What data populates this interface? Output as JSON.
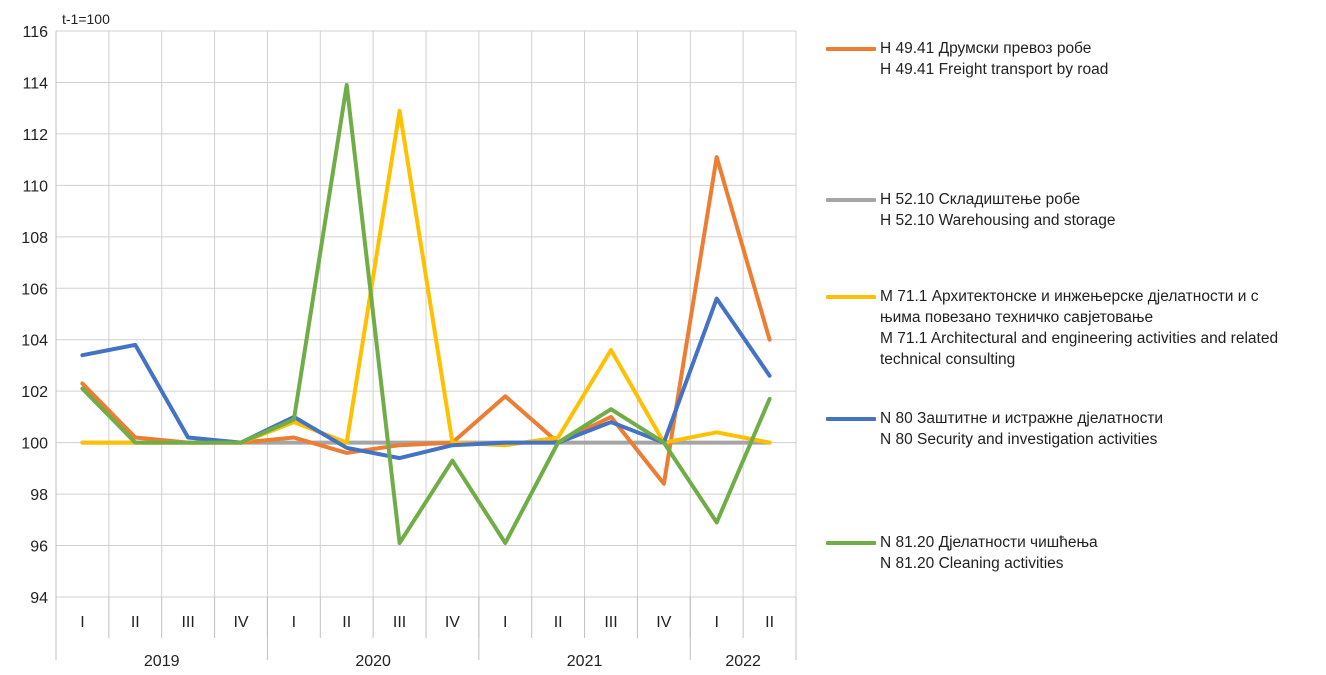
{
  "chart_data": {
    "type": "line",
    "unit_label": "t-1=100",
    "ylim": [
      94,
      116
    ],
    "y_ticks": [
      94,
      96,
      98,
      100,
      102,
      104,
      106,
      108,
      110,
      112,
      114,
      116
    ],
    "grid": true,
    "legend_position": "right",
    "categories": [
      "I",
      "II",
      "III",
      "IV",
      "I",
      "II",
      "III",
      "IV",
      "I",
      "II",
      "III",
      "IV",
      "I",
      "II"
    ],
    "years": [
      {
        "label": "2019",
        "quarters": 4
      },
      {
        "label": "2020",
        "quarters": 4
      },
      {
        "label": "2021",
        "quarters": 4
      },
      {
        "label": "2022",
        "quarters": 2
      }
    ],
    "series": [
      {
        "color": "#ed7d31",
        "values": [
          102.3,
          100.2,
          100.0,
          100.0,
          100.2,
          99.6,
          99.9,
          100.0,
          101.8,
          100.0,
          101.0,
          98.4,
          111.1,
          104.0
        ],
        "legend_sr": "H 49.41 Друмски превоз робе",
        "legend_en": "H 49.41 Freight transport by road"
      },
      {
        "color": "#a5a5a5",
        "values": [
          100.0,
          100.0,
          100.0,
          100.0,
          100.0,
          100.0,
          100.0,
          100.0,
          100.0,
          100.0,
          100.0,
          100.0,
          100.0,
          100.0
        ],
        "legend_sr": "H 52.10 Складиштење робе",
        "legend_en": "H 52.10 Warehousing and storage"
      },
      {
        "color": "#ffc000",
        "values": [
          100.0,
          100.0,
          100.0,
          100.0,
          100.8,
          100.0,
          112.9,
          100.0,
          99.9,
          100.2,
          103.6,
          100.0,
          100.4,
          100.0
        ],
        "legend_sr": "M 71.1 Архитектонске и инжењерске дјелатности и с њима повезано техничко савјетовање",
        "legend_en": "M 71.1 Architectural and engineering activities and related technical consulting"
      },
      {
        "color": "#4472c4",
        "values": [
          103.4,
          103.8,
          100.2,
          100.0,
          101.0,
          99.8,
          99.4,
          99.9,
          100.0,
          100.0,
          100.8,
          100.0,
          105.6,
          102.6
        ],
        "legend_sr": "N 80 Заштитне и истражне дјелатности",
        "legend_en": "N 80 Security and investigation activities"
      },
      {
        "color": "#70ad47",
        "values": [
          102.1,
          100.0,
          100.0,
          100.0,
          100.9,
          113.9,
          96.1,
          99.3,
          96.1,
          100.0,
          101.3,
          100.0,
          96.9,
          101.7
        ],
        "legend_sr": "N 81.20 Дјелатности чишћења",
        "legend_en": "N 81.20 Cleaning activities"
      }
    ]
  }
}
